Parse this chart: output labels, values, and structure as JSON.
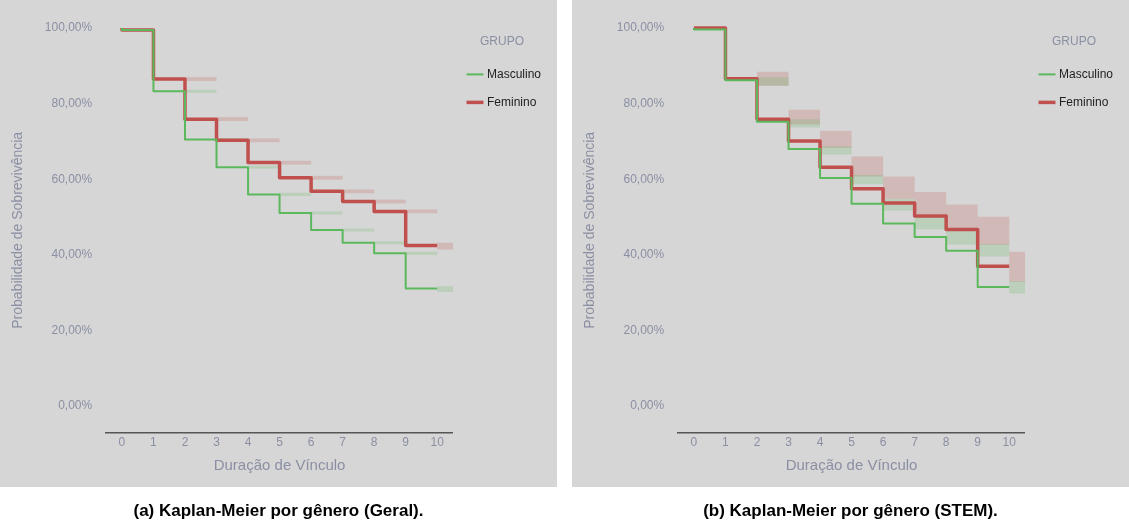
{
  "chart_data": [
    {
      "type": "step",
      "title": "(a) Kaplan-Meier por gênero (Geral).",
      "xlabel": "Duração de Vínculo",
      "ylabel": "Probabilidade de Sobrevivência",
      "legend_title": "GRUPO",
      "legend": "top right",
      "grid": false,
      "x": [
        0,
        1,
        2,
        3,
        4,
        5,
        6,
        7,
        8,
        9,
        10,
        10.5
      ],
      "xlim": [
        -0.5,
        10.5
      ],
      "xticks": [
        0,
        1,
        2,
        3,
        4,
        5,
        6,
        7,
        8,
        9,
        10
      ],
      "ylim": [
        -7,
        100
      ],
      "yticks": [
        {
          "value": 0,
          "label": "0,00%"
        },
        {
          "value": 20,
          "label": "20,00%"
        },
        {
          "value": 40,
          "label": "40,00%"
        },
        {
          "value": 60,
          "label": "60,00%"
        },
        {
          "value": 80,
          "label": "80,00%"
        },
        {
          "value": 100,
          "label": "100,00%"
        }
      ],
      "series": [
        {
          "name": "Feminino",
          "color": "#c0504d",
          "values": [
            100,
            99.5,
            86.5,
            75.9,
            70.3,
            64.4,
            60.4,
            56.8,
            54.1,
            51.5,
            42.5,
            null
          ],
          "lower": [
            null,
            null,
            86,
            75.4,
            69.8,
            63.9,
            59.9,
            56.3,
            53.6,
            51,
            41.4,
            41.4
          ],
          "upper": [
            null,
            null,
            87,
            76.4,
            70.8,
            64.9,
            60.9,
            57.3,
            54.6,
            52,
            43.2,
            43.2
          ]
        },
        {
          "name": "Masculino",
          "color": "#5cb85c",
          "values": [
            100,
            99.5,
            83.3,
            70.5,
            63.2,
            56,
            51.1,
            46.6,
            43.2,
            40.4,
            31.1,
            null
          ],
          "lower": [
            null,
            null,
            82.9,
            70.1,
            62.8,
            55.6,
            50.7,
            46.2,
            42.8,
            40,
            30.2,
            30.2
          ],
          "upper": [
            null,
            null,
            83.7,
            70.9,
            63.6,
            56.4,
            51.5,
            47,
            43.6,
            40.8,
            31.7,
            31.7
          ]
        }
      ]
    },
    {
      "type": "step",
      "title": "(b) Kaplan-Meier por gênero (STEM).",
      "xlabel": "Duração de Vínculo",
      "ylabel": "Probabilidade de Sobrevivência",
      "legend_title": "GRUPO",
      "legend": "top right",
      "grid": false,
      "x": [
        0,
        1,
        2,
        3,
        4,
        5,
        6,
        7,
        8,
        9,
        10,
        10.5
      ],
      "xlim": [
        -0.5,
        10.5
      ],
      "xticks": [
        0,
        1,
        2,
        3,
        4,
        5,
        6,
        7,
        8,
        9,
        10
      ],
      "ylim": [
        -7,
        100
      ],
      "yticks": [
        {
          "value": 0,
          "label": "0,00%"
        },
        {
          "value": 20,
          "label": "20,00%"
        },
        {
          "value": 40,
          "label": "40,00%"
        },
        {
          "value": 60,
          "label": "60,00%"
        },
        {
          "value": 80,
          "label": "80,00%"
        },
        {
          "value": 100,
          "label": "100,00%"
        }
      ],
      "series": [
        {
          "name": "Feminino",
          "color": "#c0504d",
          "values": [
            100,
            100,
            86.6,
            75.9,
            70.1,
            63.2,
            57.5,
            53.7,
            50.3,
            46.7,
            37,
            null
          ],
          "lower": [
            null,
            null,
            84.7,
            74.5,
            68.3,
            60.7,
            54.8,
            50.8,
            46.8,
            42.7,
            32.9,
            32.9
          ],
          "upper": [
            null,
            null,
            88.4,
            78.4,
            72.8,
            66,
            60.7,
            56.6,
            53.3,
            50.1,
            40.8,
            40.8
          ]
        },
        {
          "name": "Masculino",
          "color": "#5cb85c",
          "values": [
            100,
            99.6,
            86.2,
            75.2,
            68,
            60.3,
            53.5,
            48.3,
            44.7,
            41.1,
            31.5,
            null
          ],
          "lower": [
            null,
            null,
            84.7,
            73.7,
            66.5,
            58.7,
            51.7,
            46.8,
            42.7,
            39.6,
            29.8,
            29.8
          ],
          "upper": [
            null,
            null,
            87,
            75.9,
            68.7,
            61.1,
            54.8,
            50.3,
            46.3,
            42.9,
            33.1,
            33.1
          ]
        }
      ]
    }
  ]
}
